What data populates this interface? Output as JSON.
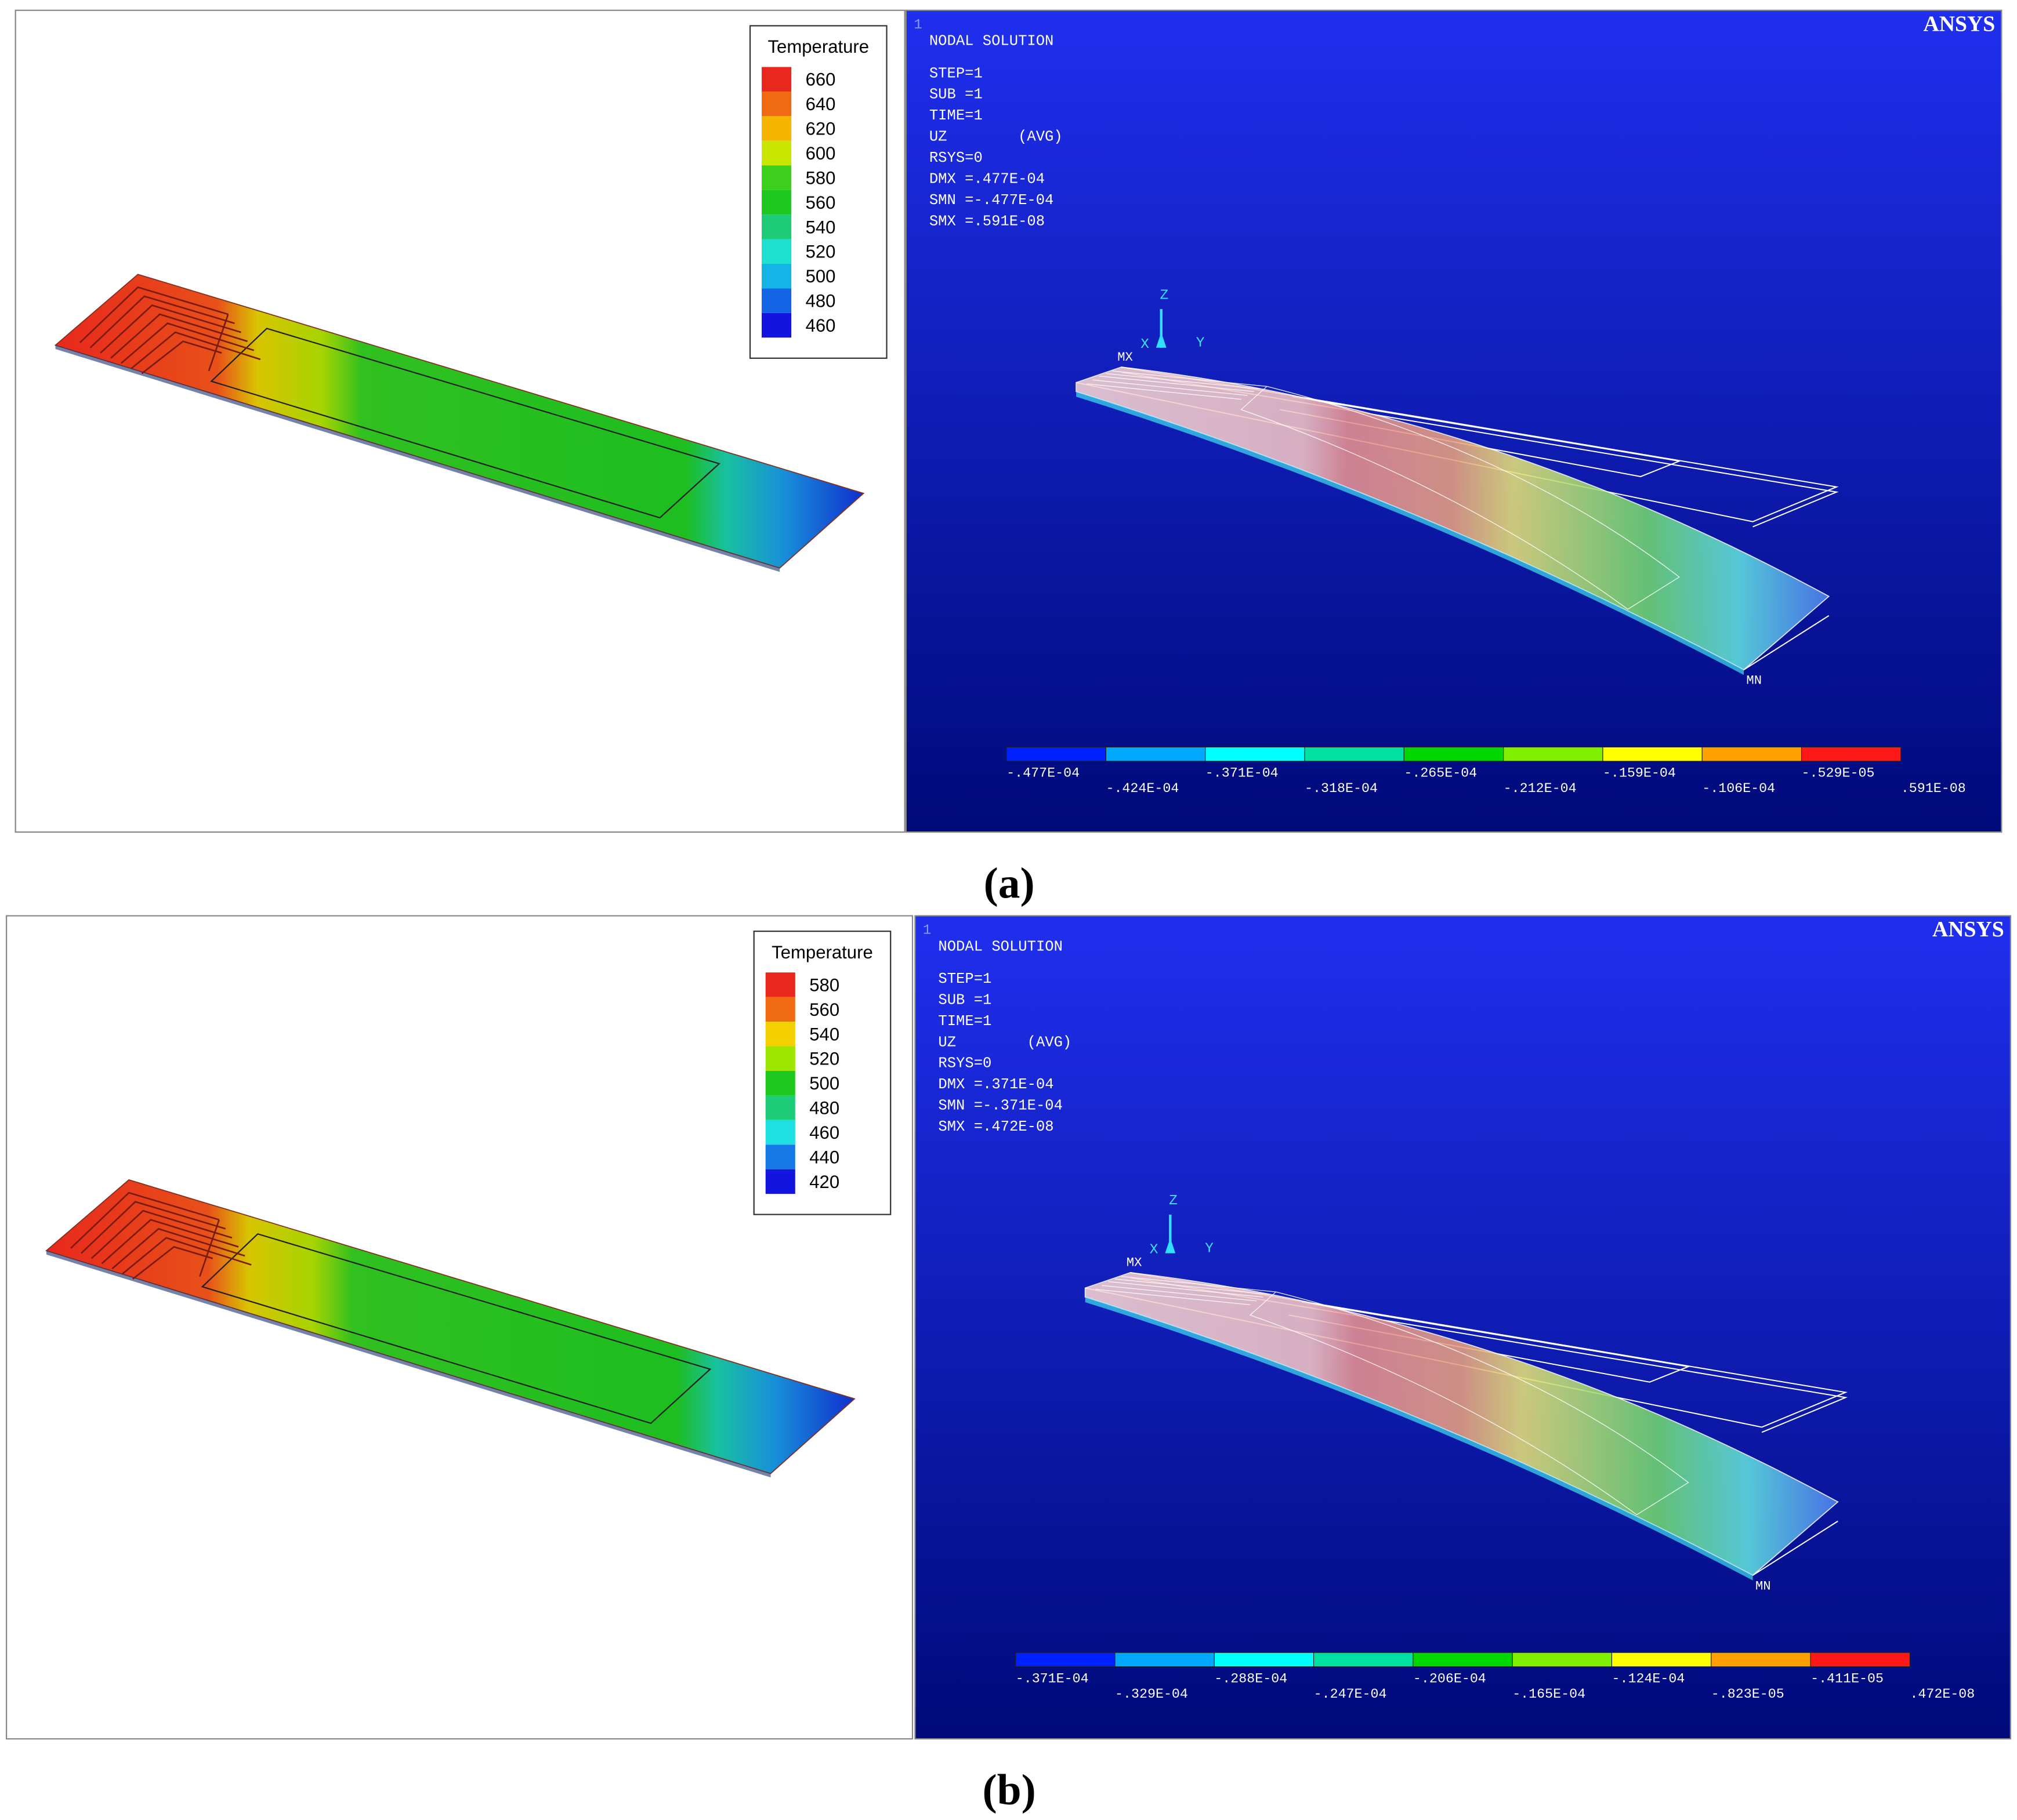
{
  "panels": [
    {
      "label": "(a)",
      "temperature": {
        "title": "Temperature",
        "levels": [
          660,
          640,
          620,
          600,
          580,
          560,
          540,
          520,
          500,
          480,
          460
        ]
      },
      "ansys": {
        "window": "1",
        "logo": "ANSYS",
        "heading": "NODAL SOLUTION",
        "info": [
          "STEP=1",
          "SUB =1",
          "TIME=1",
          "UZ        (AVG)",
          "RSYS=0",
          "DMX =.477E-04",
          "SMN =-.477E-04",
          "SMX =.591E-08"
        ],
        "triad": [
          "X",
          "Y",
          "Z"
        ],
        "markers": [
          "MX",
          "MN"
        ],
        "scale": [
          "-.477E-04",
          "-.424E-04",
          "-.371E-04",
          "-.318E-04",
          "-.265E-04",
          "-.212E-04",
          "-.159E-04",
          "-.106E-04",
          "-.529E-05",
          ".591E-08"
        ]
      }
    },
    {
      "label": "(b)",
      "temperature": {
        "title": "Temperature",
        "levels": [
          580,
          560,
          540,
          520,
          500,
          480,
          460,
          440,
          420
        ]
      },
      "ansys": {
        "window": "1",
        "logo": "ANSYS",
        "heading": "NODAL SOLUTION",
        "info": [
          "STEP=1",
          "SUB =1",
          "TIME=1",
          "UZ        (AVG)",
          "RSYS=0",
          "DMX =.371E-04",
          "SMN =-.371E-04",
          "SMX =.472E-08"
        ],
        "triad": [
          "X",
          "Y",
          "Z"
        ],
        "markers": [
          "MX",
          "MN"
        ],
        "scale": [
          "-.371E-04",
          "-.329E-04",
          "-.288E-04",
          "-.247E-04",
          "-.206E-04",
          "-.165E-04",
          "-.124E-04",
          "-.823E-05",
          "-.411E-05",
          ".472E-08"
        ]
      }
    }
  ]
}
